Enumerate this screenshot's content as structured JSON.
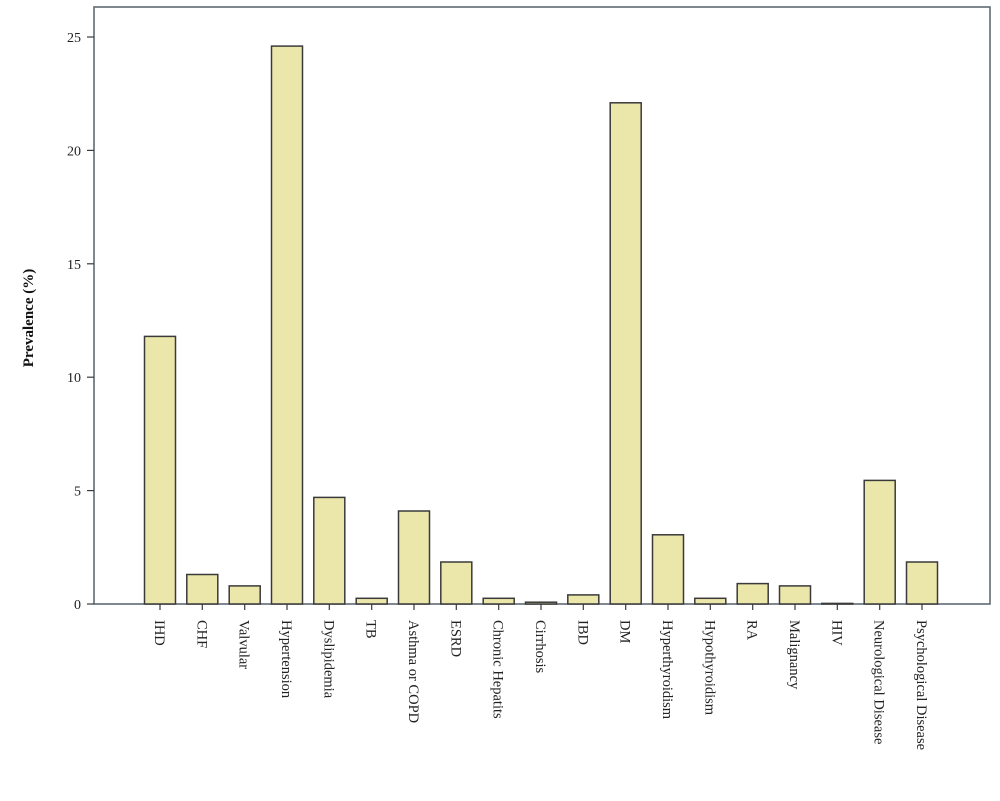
{
  "chart_data": {
    "type": "bar",
    "title": "",
    "xlabel": "",
    "ylabel": "Prevalence (%)",
    "ylim": [
      0,
      26
    ],
    "yticks": [
      0,
      5,
      10,
      15,
      20,
      25
    ],
    "grid": false,
    "categories": [
      "IHD",
      "CHF",
      "Valvular",
      "Hypertension",
      "Dyslipidemia",
      "TB",
      "Asthma or COPD",
      "ESRD",
      "Chronic Hepatits",
      "Cirrhosis",
      "IBD",
      "DM",
      "Hyperthyroidism",
      "Hypothyroidism",
      "RA",
      "Malignancy",
      "HIV",
      "Neurological Disease",
      "Psychological Disease"
    ],
    "values": [
      11.8,
      1.3,
      0.8,
      24.6,
      4.7,
      0.25,
      4.1,
      1.85,
      0.25,
      0.08,
      0.4,
      22.1,
      3.05,
      0.25,
      0.9,
      0.8,
      0.02,
      5.45,
      1.85
    ],
    "colors": {
      "bar_fill": "#ebe6a9",
      "bar_stroke": "#3a3a3a",
      "frame": "#5f6b73"
    }
  }
}
